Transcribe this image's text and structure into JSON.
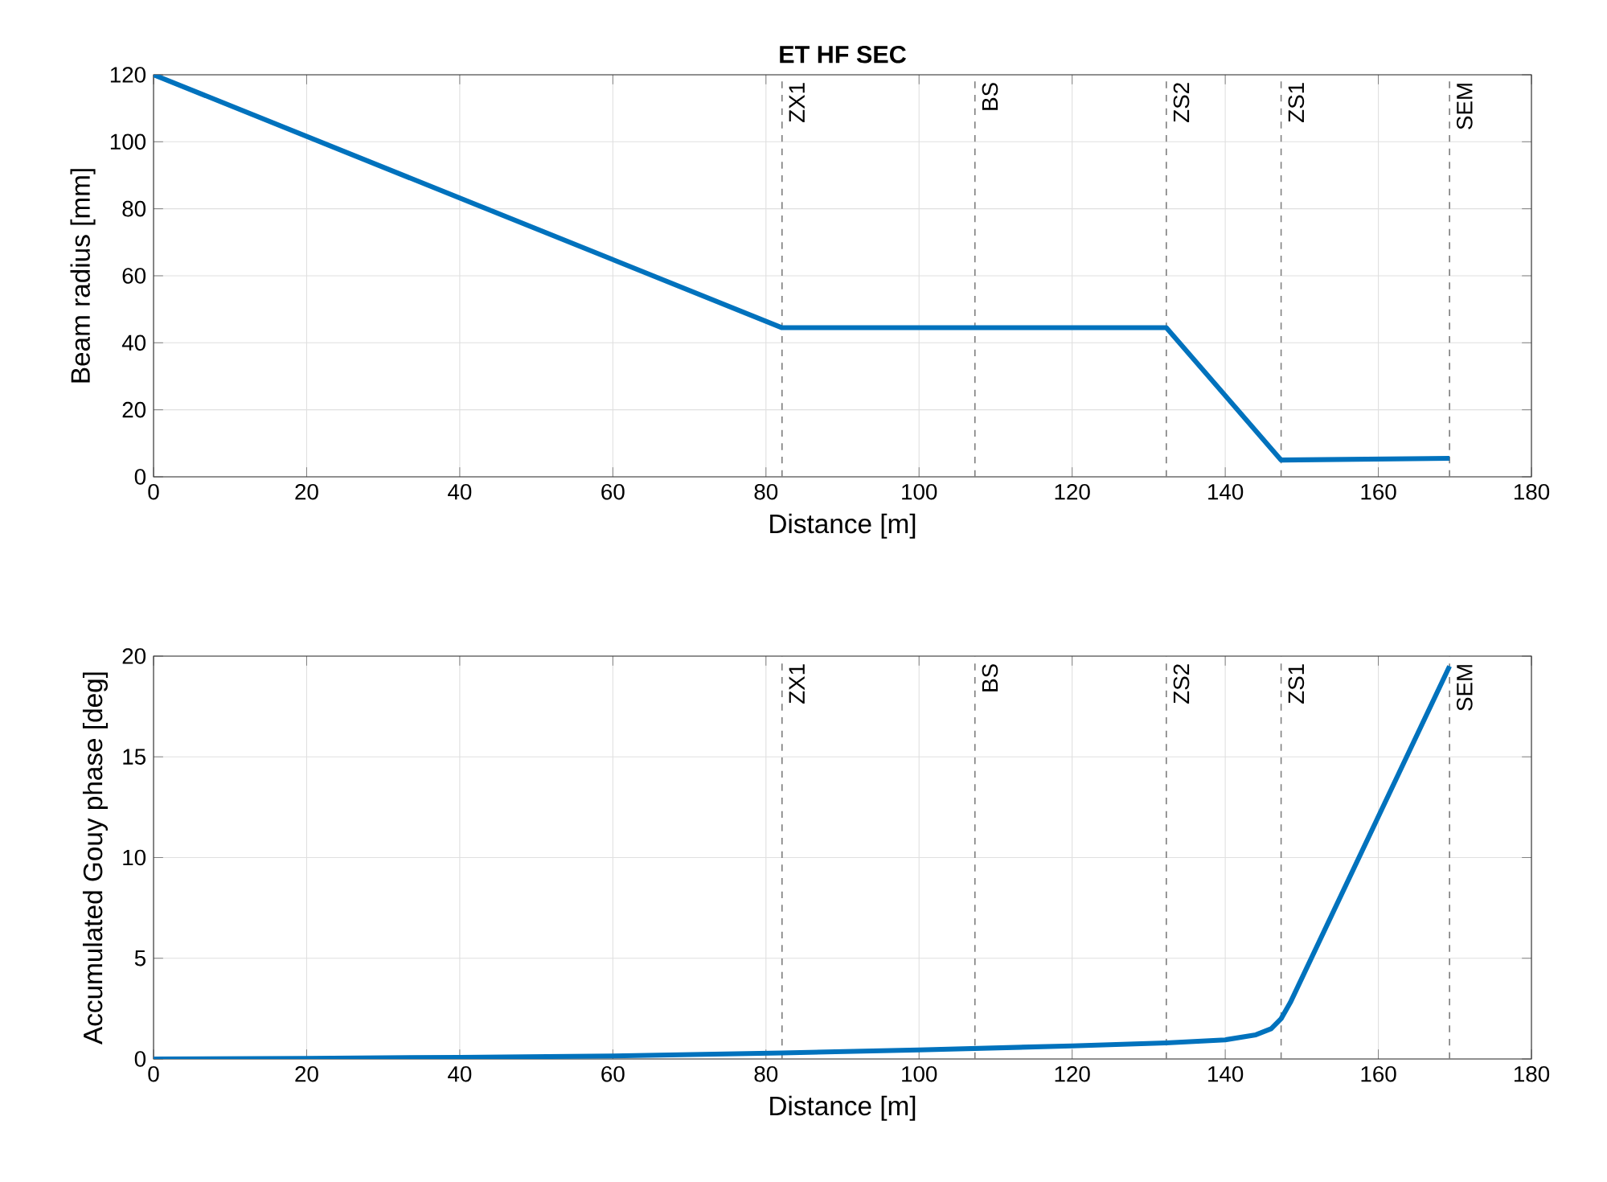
{
  "chart_data": [
    {
      "type": "line",
      "title": "ET HF SEC",
      "xlabel": "Distance [m]",
      "ylabel": "Beam radius [mm]",
      "xlim": [
        0,
        180
      ],
      "xticks": [
        0,
        20,
        40,
        60,
        80,
        100,
        120,
        140,
        160,
        180
      ],
      "ylim": [
        0,
        120
      ],
      "yticks": [
        0,
        20,
        40,
        60,
        80,
        100,
        120
      ],
      "grid": true,
      "series": [
        {
          "color": "#0072bd",
          "x": [
            0,
            82.1,
            132.3,
            147.3,
            169.3
          ],
          "values": [
            120,
            44.5,
            44.5,
            5,
            5.5
          ]
        }
      ],
      "ref_lines": [
        {
          "axis": "x",
          "value": 82.1,
          "label": "ZX1",
          "color": "#808080",
          "line_style": "dashed"
        },
        {
          "axis": "x",
          "value": 107.3,
          "label": "BS",
          "color": "#808080",
          "line_style": "dashed"
        },
        {
          "axis": "x",
          "value": 132.3,
          "label": "ZS2",
          "color": "#808080",
          "line_style": "dashed"
        },
        {
          "axis": "x",
          "value": 147.3,
          "label": "ZS1",
          "color": "#808080",
          "line_style": "dashed"
        },
        {
          "axis": "x",
          "value": 169.3,
          "label": "SEM",
          "color": "#808080",
          "line_style": "dashed"
        }
      ]
    },
    {
      "type": "line",
      "xlabel": "Distance [m]",
      "ylabel": "Accumulated Gouy phase [deg]",
      "xlim": [
        0,
        180
      ],
      "xticks": [
        0,
        20,
        40,
        60,
        80,
        100,
        120,
        140,
        160,
        180
      ],
      "ylim": [
        0,
        20
      ],
      "yticks": [
        0,
        5,
        10,
        15,
        20
      ],
      "grid": true,
      "series": [
        {
          "color": "#0072bd",
          "x": [
            0,
            20,
            40,
            60,
            82.1,
            100,
            120,
            132.3,
            140,
            144,
            146,
            147.3,
            148.5,
            169.3
          ],
          "values": [
            0,
            0.03,
            0.08,
            0.15,
            0.3,
            0.45,
            0.65,
            0.8,
            0.95,
            1.2,
            1.5,
            2.0,
            2.8,
            19.5
          ]
        }
      ],
      "ref_lines": [
        {
          "axis": "x",
          "value": 82.1,
          "label": "ZX1",
          "color": "#808080",
          "line_style": "dashed"
        },
        {
          "axis": "x",
          "value": 107.3,
          "label": "BS",
          "color": "#808080",
          "line_style": "dashed"
        },
        {
          "axis": "x",
          "value": 132.3,
          "label": "ZS2",
          "color": "#808080",
          "line_style": "dashed"
        },
        {
          "axis": "x",
          "value": 147.3,
          "label": "ZS1",
          "color": "#808080",
          "line_style": "dashed"
        },
        {
          "axis": "x",
          "value": 169.3,
          "label": "SEM",
          "color": "#808080",
          "line_style": "dashed"
        }
      ]
    }
  ]
}
